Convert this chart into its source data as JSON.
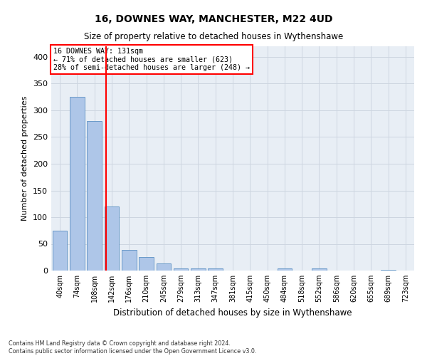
{
  "title": "16, DOWNES WAY, MANCHESTER, M22 4UD",
  "subtitle": "Size of property relative to detached houses in Wythenshawe",
  "xlabel": "Distribution of detached houses by size in Wythenshawe",
  "ylabel": "Number of detached properties",
  "bin_labels": [
    "40sqm",
    "74sqm",
    "108sqm",
    "142sqm",
    "176sqm",
    "210sqm",
    "245sqm",
    "279sqm",
    "313sqm",
    "347sqm",
    "381sqm",
    "415sqm",
    "450sqm",
    "484sqm",
    "518sqm",
    "552sqm",
    "586sqm",
    "620sqm",
    "655sqm",
    "689sqm",
    "723sqm"
  ],
  "bar_heights": [
    75,
    325,
    280,
    120,
    39,
    26,
    14,
    4,
    4,
    4,
    0,
    0,
    0,
    4,
    0,
    4,
    0,
    0,
    0,
    2,
    0
  ],
  "bar_color": "#aec6e8",
  "bar_edgecolor": "#5a8fc2",
  "vline_x": 2.67,
  "vline_color": "red",
  "annotation_line1": "16 DOWNES WAY: 131sqm",
  "annotation_line2": "← 71% of detached houses are smaller (623)",
  "annotation_line3": "28% of semi-detached houses are larger (248) →",
  "annotation_box_color": "white",
  "annotation_box_edgecolor": "red",
  "ylim": [
    0,
    420
  ],
  "yticks": [
    0,
    50,
    100,
    150,
    200,
    250,
    300,
    350,
    400
  ],
  "footnote": "Contains HM Land Registry data © Crown copyright and database right 2024.\nContains public sector information licensed under the Open Government Licence v3.0.",
  "grid_color": "#cdd5e0",
  "background_color": "#e8eef5"
}
